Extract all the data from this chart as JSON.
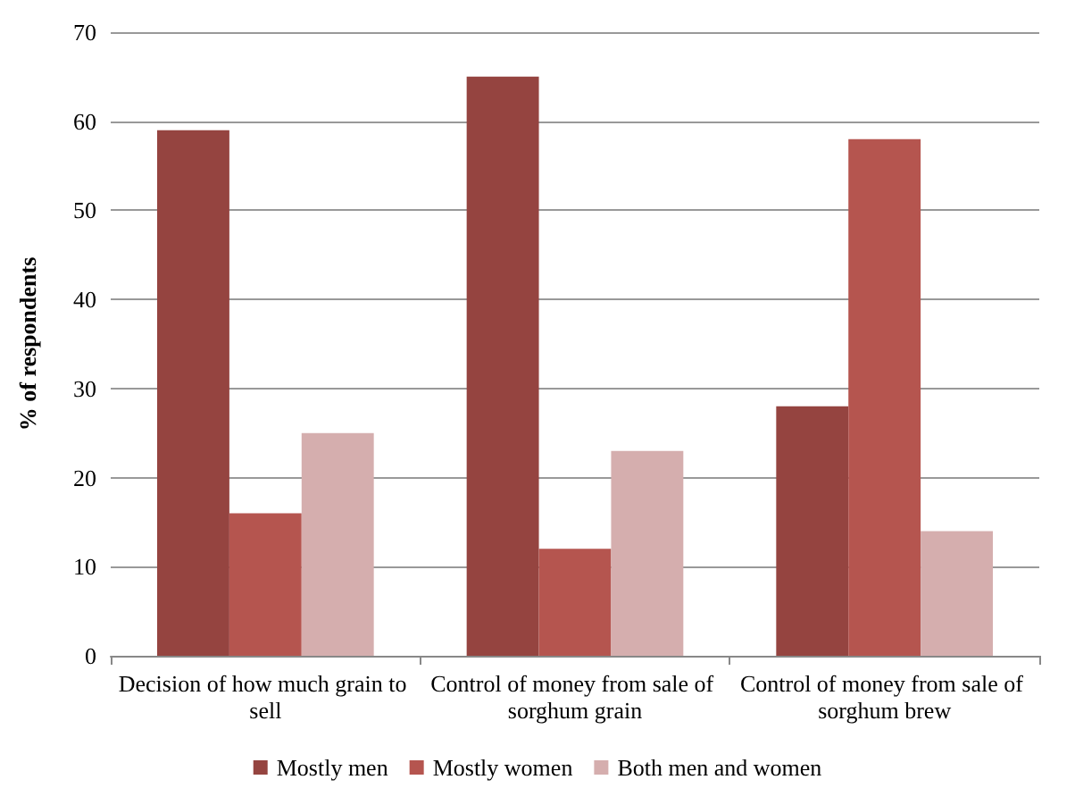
{
  "chart_data": {
    "type": "bar",
    "ylabel": "% of respondents",
    "categories": [
      "Decision of how much grain to sell",
      "Control of money from sale of sorghum grain",
      "Control of money from sale of sorghum brew"
    ],
    "series": [
      {
        "name": "Mostly men",
        "color": "#954440",
        "values": [
          59,
          65,
          28
        ]
      },
      {
        "name": "Mostly women",
        "color": "#b5554f",
        "values": [
          16,
          12,
          58
        ]
      },
      {
        "name": "Both men and women",
        "color": "#d5aeae",
        "values": [
          25,
          23,
          14
        ]
      }
    ],
    "ylim": [
      0,
      70
    ],
    "yticks": [
      0,
      10,
      20,
      30,
      40,
      50,
      60,
      70
    ],
    "grid": "y",
    "legend": "bottom"
  }
}
